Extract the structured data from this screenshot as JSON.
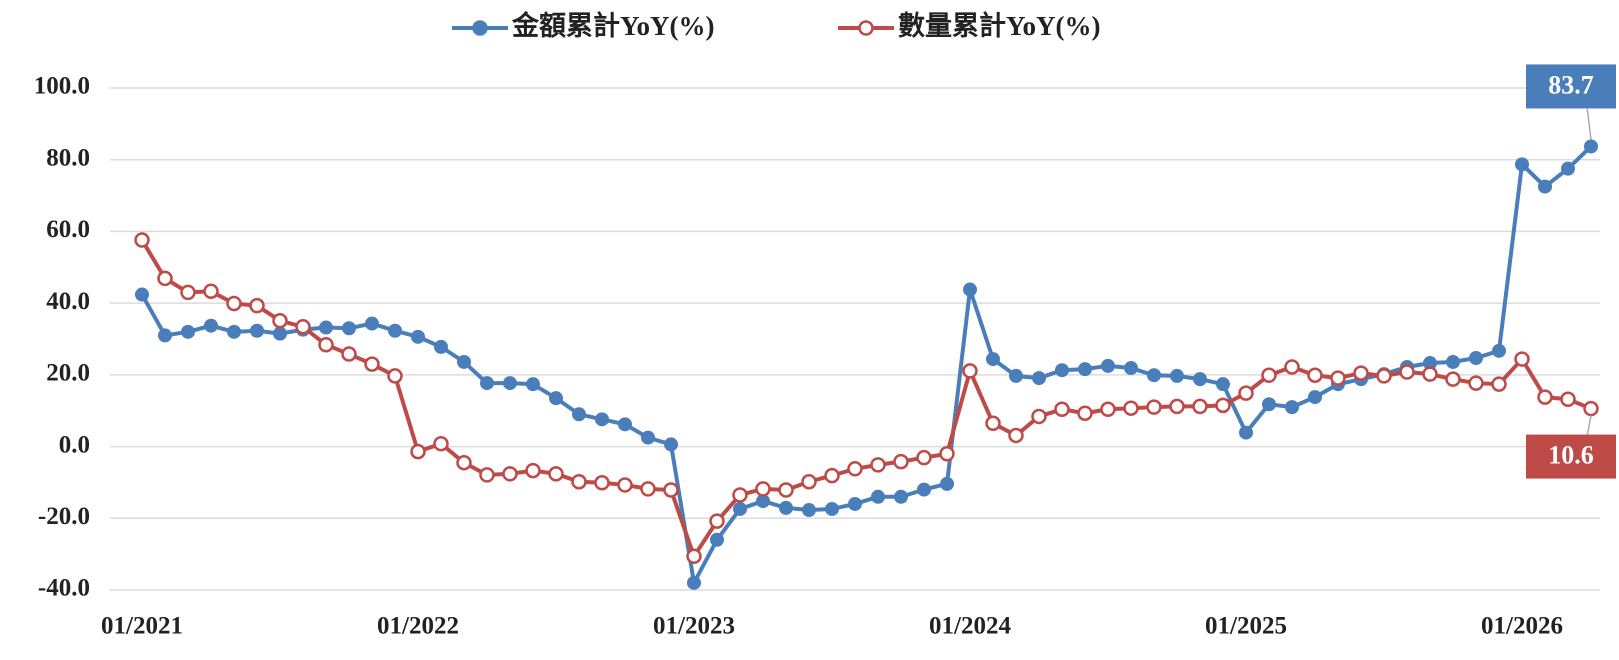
{
  "chart_data": {
    "type": "line",
    "categories": [
      "01/2021",
      null,
      null,
      null,
      null,
      null,
      null,
      null,
      null,
      null,
      null,
      null,
      "01/2022",
      null,
      null,
      null,
      null,
      null,
      null,
      null,
      null,
      null,
      null,
      null,
      "01/2023",
      null,
      null,
      null,
      null,
      null,
      null,
      null,
      null,
      null,
      null,
      null,
      "01/2024",
      null,
      null,
      null,
      null,
      null,
      null,
      null,
      null,
      null,
      null,
      null,
      "01/2025",
      null,
      null,
      null,
      null,
      null,
      null,
      null,
      null,
      null,
      null,
      null,
      "01/2026",
      null,
      null,
      null
    ],
    "series": [
      {
        "name": "金額累計YoY(%)",
        "color": "#4a7ebb",
        "marker": "filled",
        "values": [
          42.4,
          31,
          32,
          33.7,
          32,
          32.3,
          31.5,
          32.6,
          33.2,
          33,
          34.3,
          32.3,
          30.6,
          27.8,
          23.6,
          17.7,
          17.7,
          17.4,
          13.5,
          9,
          7.6,
          6.2,
          2.5,
          0.6,
          -38,
          -26,
          -17.4,
          -15.2,
          -17.1,
          -17.7,
          -17.4,
          -16,
          -14,
          -14,
          -12,
          -10.4,
          43.8,
          24.4,
          19.7,
          19.1,
          21.3,
          21.6,
          22.5,
          21.9,
          19.9,
          19.7,
          18.8,
          17.4,
          3.9,
          11.8,
          11,
          13.8,
          17.4,
          18.8,
          20.2,
          22.2,
          23.3,
          23.6,
          24.7,
          26.7,
          78.7,
          72.5,
          77.5,
          83.7
        ]
      },
      {
        "name": "數量累計YoY(%)",
        "color": "#be4b48",
        "marker": "hollow",
        "values": [
          57.6,
          46.9,
          43,
          43.3,
          39.9,
          39.3,
          35.1,
          33.4,
          28.4,
          25.8,
          23,
          19.7,
          -1.4,
          0.8,
          -4.5,
          -7.9,
          -7.6,
          -6.7,
          -7.6,
          -9.8,
          -10.1,
          -10.7,
          -11.8,
          -12.1,
          -30.6,
          -20.8,
          -13.5,
          -11.8,
          -12.1,
          -9.8,
          -8.1,
          -6.2,
          -5.1,
          -4.2,
          -3.1,
          -2,
          21.1,
          6.5,
          3.1,
          8.4,
          10.4,
          9.3,
          10.4,
          10.7,
          11,
          11.2,
          11.2,
          11.5,
          14.9,
          19.9,
          22.2,
          19.9,
          19.1,
          20.5,
          19.7,
          20.8,
          20.2,
          18.8,
          17.7,
          17.4,
          24.4,
          13.8,
          13.2,
          10.6
        ]
      }
    ],
    "ylim": [
      -40,
      100
    ],
    "yticks": [
      {
        "value": -40,
        "label": "-40.0"
      },
      {
        "value": -20,
        "label": "-20.0"
      },
      {
        "value": 0,
        "label": "0.0"
      },
      {
        "value": 20,
        "label": "20.0"
      },
      {
        "value": 40,
        "label": "40.0"
      },
      {
        "value": 60,
        "label": "60.0"
      },
      {
        "value": 80,
        "label": "80.0"
      },
      {
        "value": 100,
        "label": "100.0"
      }
    ],
    "grid": true,
    "legend": "top"
  }
}
